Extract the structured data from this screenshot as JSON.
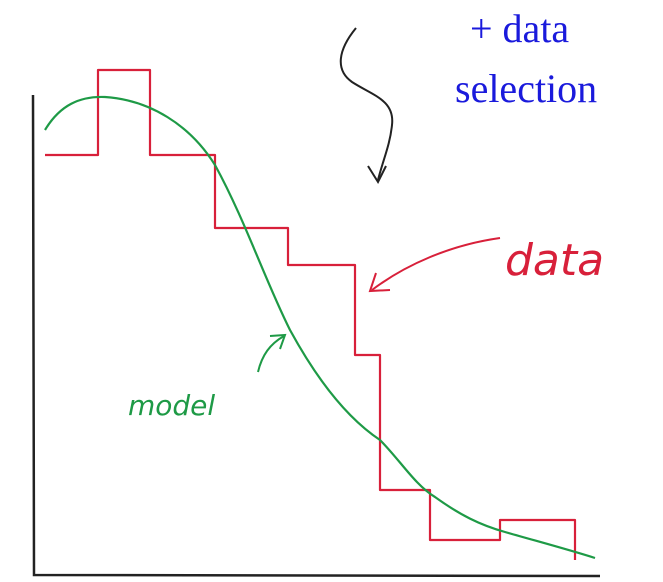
{
  "annotations": {
    "top_right_line1": "+ data",
    "top_right_line2": "selection",
    "data_label": "data",
    "model_label": "model"
  }
}
